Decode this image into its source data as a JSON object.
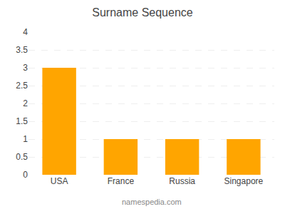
{
  "chart_data": {
    "type": "bar",
    "title": "Surname Sequence",
    "categories": [
      "USA",
      "France",
      "Russia",
      "Singapore"
    ],
    "values": [
      3,
      1,
      1,
      1
    ],
    "color": "#FFA500",
    "ylim": [
      0,
      4
    ],
    "yticks": [
      0,
      0.5,
      1,
      1.5,
      2,
      2.5,
      3,
      3.5,
      4
    ],
    "grid": true,
    "annotations": [
      "namespedia.com"
    ]
  }
}
